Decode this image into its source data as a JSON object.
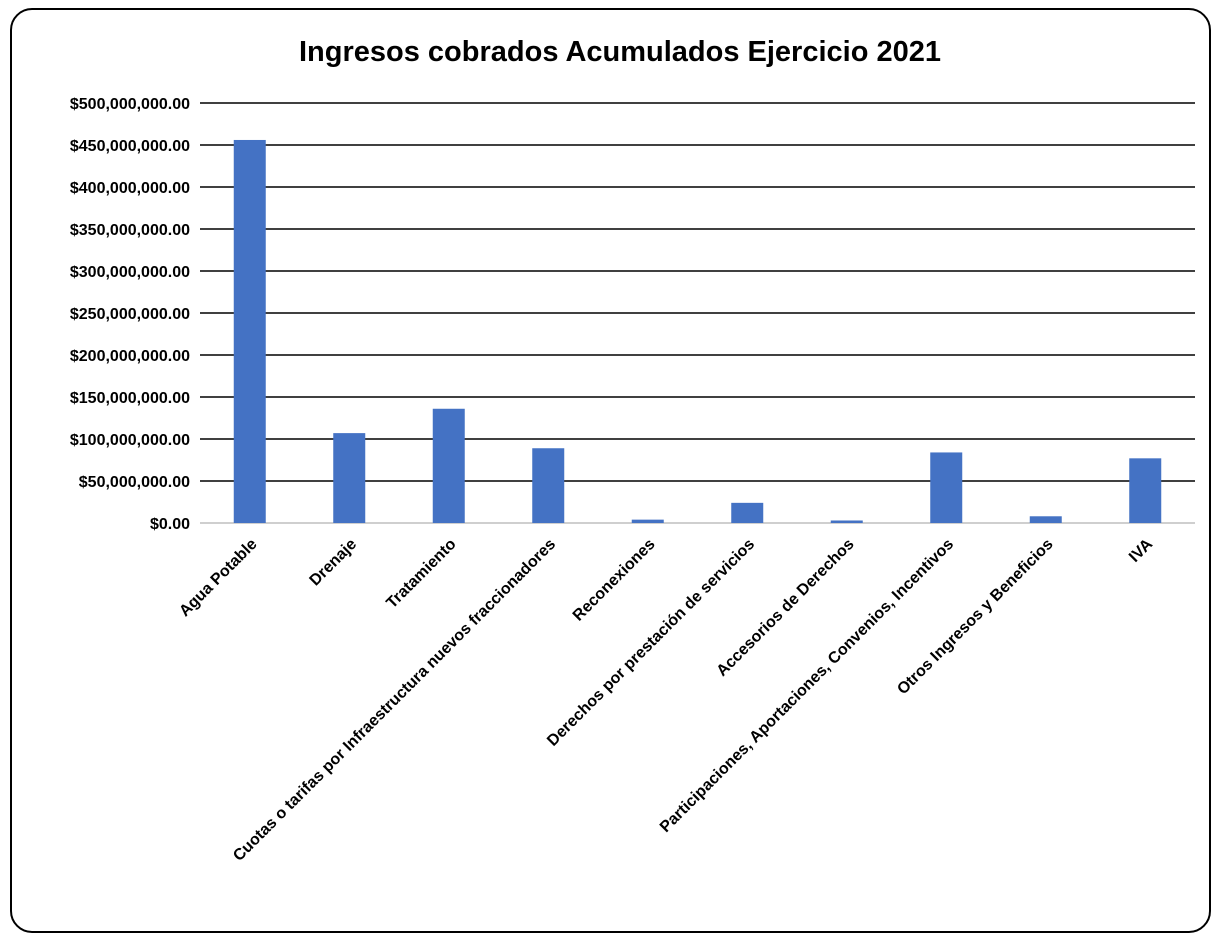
{
  "chart_data": {
    "type": "bar",
    "title": "Ingresos cobrados Acumulados Ejercicio 2021",
    "xlabel": "",
    "ylabel": "",
    "ylim": [
      0,
      500000000
    ],
    "y_ticks": [
      0,
      50000000,
      100000000,
      150000000,
      200000000,
      250000000,
      300000000,
      350000000,
      400000000,
      450000000,
      500000000
    ],
    "y_tick_labels": [
      "$0.00",
      "$50,000,000.00",
      "$100,000,000.00",
      "$150,000,000.00",
      "$200,000,000.00",
      "$250,000,000.00",
      "$300,000,000.00",
      "$350,000,000.00",
      "$400,000,000.00",
      "$450,000,000.00",
      "$500,000,000.00"
    ],
    "categories": [
      "Agua Potable",
      "Drenaje",
      "Tratamiento",
      "Cuotas o tarifas por Infraestructura nuevos fraccionadores",
      "Reconexiones",
      "Derechos por prestación de servicios",
      "Accesorios de Derechos",
      "Participaciones, Aportaciones, Convenios, Incentivos",
      "Otros Ingresos y Beneficios",
      "IVA"
    ],
    "values": [
      456000000,
      107000000,
      136000000,
      89000000,
      4000000,
      24000000,
      3000000,
      84000000,
      8000000,
      77000000
    ],
    "bar_color": "#4472C4",
    "grid": true,
    "legend": "none"
  }
}
